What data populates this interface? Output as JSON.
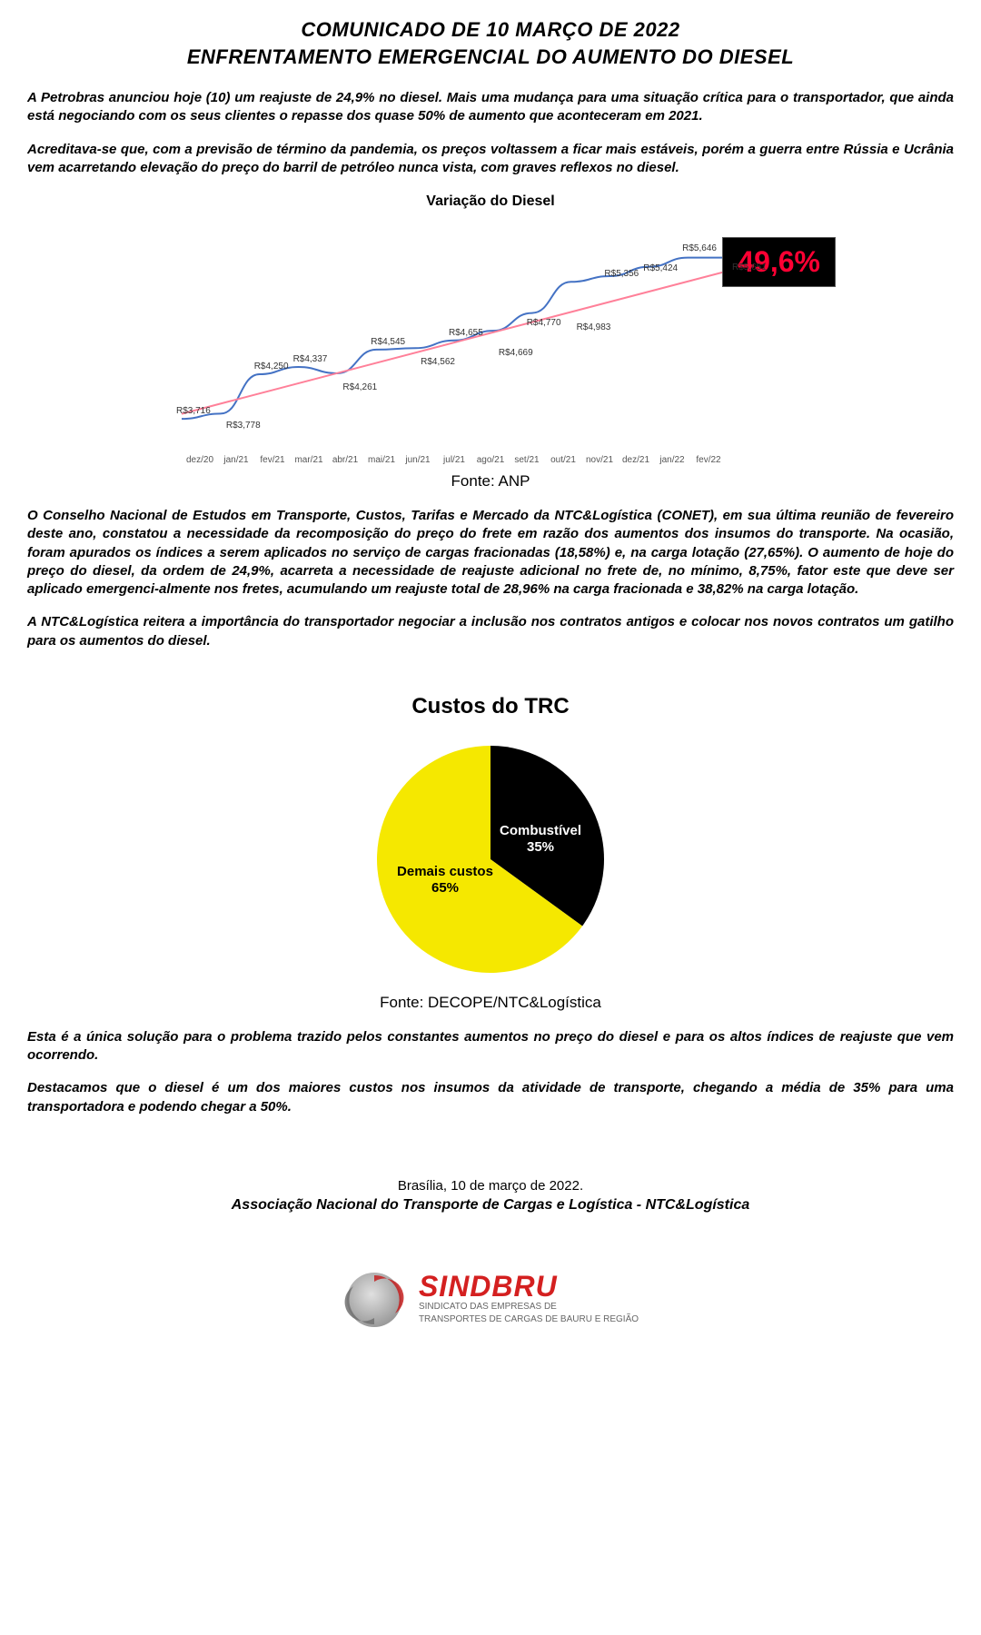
{
  "header": {
    "line1": "COMUNICADO DE 10 MARÇO DE 2022",
    "line2": "ENFRENTAMENTO EMERGENCIAL DO AUMENTO DO DIESEL"
  },
  "paragraphs": {
    "p1": "A Petrobras anunciou hoje (10) um reajuste de 24,9% no diesel. Mais uma mudança para uma situação crítica para o transportador, que ainda está negociando com os seus clientes o repasse dos quase 50% de aumento que aconteceram em 2021.",
    "p2": "Acreditava-se que, com a previsão de término da pandemia, os preços voltassem a ficar mais estáveis, porém a guerra entre Rússia e Ucrânia vem acarretando elevação do preço do barril de petróleo nunca vista, com graves reflexos no diesel.",
    "p3": "O Conselho Nacional de Estudos em Transporte, Custos, Tarifas e Mercado da NTC&Logística (CONET), em sua última reunião de fevereiro deste ano, constatou a necessidade da recomposição do preço do frete em razão dos aumentos dos insumos do transporte. Na ocasião, foram apurados os índices a serem aplicados no serviço de cargas fracionadas (18,58%) e, na carga lotação (27,65%). O aumento de hoje do preço do diesel, da ordem de 24,9%, acarreta a necessidade de reajuste adicional no frete de, no mínimo, 8,75%, fator este que deve ser aplicado emergenci-almente nos fretes, acumulando um reajuste total de 28,96% na carga fracionada e 38,82% na carga lotação.",
    "p4": "A NTC&Logística reitera a importância do transportador negociar a inclusão nos contratos antigos e colocar nos novos contratos um gatilho para os aumentos do diesel.",
    "p5": "Esta é a única solução para o problema trazido pelos constantes aumentos no preço do diesel e para os altos índices de reajuste que vem ocorrendo.",
    "p6": "Destacamos que o diesel é um dos maiores custos nos insumos da atividade de transporte, chegando a média de 35% para uma transportadora e podendo chegar a 50%."
  },
  "line_chart": {
    "title": "Variação do Diesel",
    "source": "Fonte: ANP",
    "badge_value": "49,6%",
    "badge_bg": "#000000",
    "badge_text_color": "#ff0033",
    "line_color": "#4472c4",
    "trend_color": "#ff8099",
    "x_categories": [
      "dez/20",
      "jan/21",
      "fev/21",
      "mar/21",
      "abr/21",
      "mai/21",
      "jun/21",
      "jul/21",
      "ago/21",
      "set/21",
      "out/21",
      "nov/21",
      "dez/21",
      "jan/22",
      "fev/22"
    ],
    "series_upper": [
      3.716,
      null,
      4.25,
      4.337,
      null,
      4.545,
      null,
      4.655,
      4.77,
      null,
      5.356,
      5.424,
      null,
      5.646,
      null
    ],
    "series_lower": [
      null,
      3.778,
      null,
      null,
      4.261,
      null,
      4.562,
      4.669,
      null,
      4.983,
      null,
      null,
      null,
      5.651,
      null
    ],
    "point_labels": [
      "R$3,716",
      "R$3,778",
      "R$4,250",
      "R$4,337",
      "R$4,261",
      "R$4,545",
      "R$4,562",
      "R$4,655",
      "R$4,669",
      "R$4,770",
      "R$4,983",
      "R$5,356",
      "R$5,424",
      "R$5,646",
      "R$5,651"
    ],
    "y_min": 3.5,
    "y_max": 6.0
  },
  "pie_chart": {
    "title": "Custos do TRC",
    "source": "Fonte: DECOPE/NTC&Logística",
    "slices": [
      {
        "label": "Combustível",
        "pct_text": "35%",
        "value": 35,
        "color": "#000000",
        "text_color": "#ffffff"
      },
      {
        "label": "Demais custos",
        "pct_text": "65%",
        "value": 65,
        "color": "#f5e800",
        "text_color": "#000000"
      }
    ]
  },
  "footer": {
    "date_line": "Brasília, 10 de março de 2022.",
    "org_line": "Associação Nacional do Transporte de Cargas e Logística - NTC&Logística"
  },
  "logo": {
    "brand": "SINDBRU",
    "sub1": "SINDICATO DAS EMPRESAS DE",
    "sub2": "TRANSPORTES DE CARGAS DE BAURU E REGIÃO",
    "swirl_outer": "#b8b8b8",
    "swirl_inner": "#8a8a8a",
    "brand_color": "#d42020"
  }
}
